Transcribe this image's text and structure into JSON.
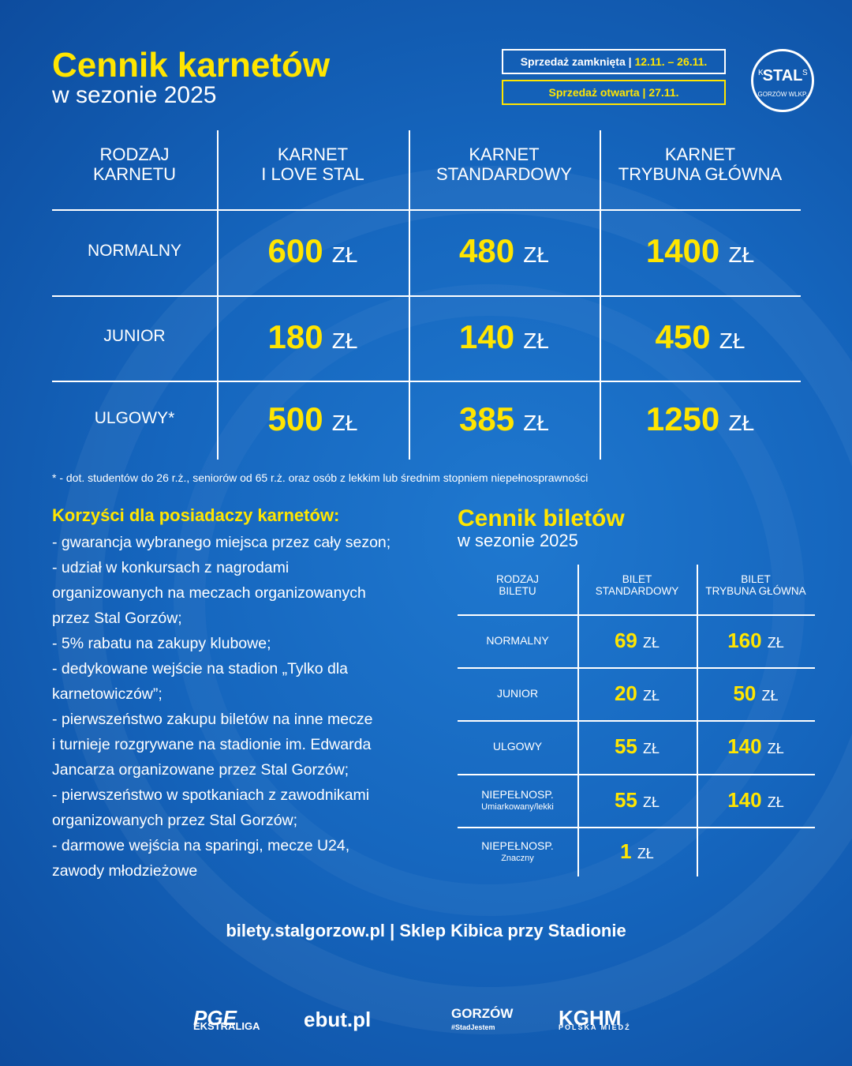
{
  "header": {
    "title": "Cennik karnetów",
    "subtitle": "w sezonie 2025",
    "sale_closed": {
      "label": "Sprzedaż zamknięta |",
      "dates": "12.11. – 26.11."
    },
    "sale_open": {
      "label": "Sprzedaż otwarta |",
      "dates": "27.11."
    },
    "logo": {
      "name": "STAL",
      "city": "GORZÓW WLKP.",
      "letters": [
        "K",
        "S"
      ]
    }
  },
  "currency": "ZŁ",
  "season_table": {
    "columns": [
      [
        "RODZAJ",
        "KARNETU"
      ],
      [
        "KARNET",
        "I LOVE STAL"
      ],
      [
        "KARNET",
        "STANDARDOWY"
      ],
      [
        "KARNET",
        "TRYBUNA GŁÓWNA"
      ]
    ],
    "rows": [
      {
        "label": "NORMALNY",
        "prices": [
          "600",
          "480",
          "1400"
        ]
      },
      {
        "label": "JUNIOR",
        "prices": [
          "180",
          "140",
          "450"
        ]
      },
      {
        "label": "ULGOWY*",
        "prices": [
          "500",
          "385",
          "1250"
        ]
      }
    ]
  },
  "footnote": "* - dot. studentów do 26 r.ż., seniorów od 65 r.ż. oraz osób z lekkim lub średnim stopniem niepełnosprawności",
  "benefits": {
    "title": "Korzyści dla posiadaczy karnetów:",
    "lines": [
      "- gwarancja wybranego miejsca przez cały sezon;",
      "- udział w konkursach z nagrodami",
      "organizowanych na meczach organizowanych",
      "przez Stal Gorzów;",
      "- 5% rabatu na zakupy klubowe;",
      "- dedykowane wejście na stadion „Tylko dla",
      "karnetowiczów”;",
      "- pierwszeństwo zakupu biletów na inne mecze",
      "i turnieje rozgrywane na stadionie im. Edwarda",
      "Jancarza organizowane przez Stal Gorzów;",
      "- pierwszeństwo w spotkaniach z zawodnikami",
      "organizowanych przez Stal Gorzów;",
      "-  darmowe wejścia na sparingi, mecze U24,",
      "zawody młodzieżowe"
    ]
  },
  "ticket_table": {
    "title": "Cennik biletów",
    "subtitle": "w sezonie 2025",
    "columns": [
      [
        "RODZAJ",
        "BILETU"
      ],
      [
        "BILET",
        "STANDARDOWY"
      ],
      [
        "BILET",
        "TRYBUNA GŁÓWNA"
      ]
    ],
    "rows": [
      {
        "label": "NORMALNY",
        "prices": [
          "69",
          "160"
        ]
      },
      {
        "label": "JUNIOR",
        "prices": [
          "20",
          "50"
        ]
      },
      {
        "label": "ULGOWY",
        "prices": [
          "55",
          "140"
        ]
      },
      {
        "label": "NIEPEŁNOSP.",
        "sublabel": "Umiarkowany/lekki",
        "prices": [
          "55",
          "140"
        ]
      },
      {
        "label": "NIEPEŁNOSP.",
        "sublabel": "Znaczny",
        "prices": [
          "1",
          null
        ]
      }
    ]
  },
  "footer": {
    "contact": "bilety.stalgorzow.pl | Sklep Kibica przy Stadionie",
    "sponsors": [
      {
        "name": "PGE",
        "sub": "EKSTRALIGA"
      },
      {
        "name": "ebut.pl"
      },
      {
        "name": "GORZÓW",
        "sub": "#StadJestem"
      },
      {
        "name": "KGHM",
        "sub": "POLSKA MIEDŹ"
      }
    ]
  }
}
